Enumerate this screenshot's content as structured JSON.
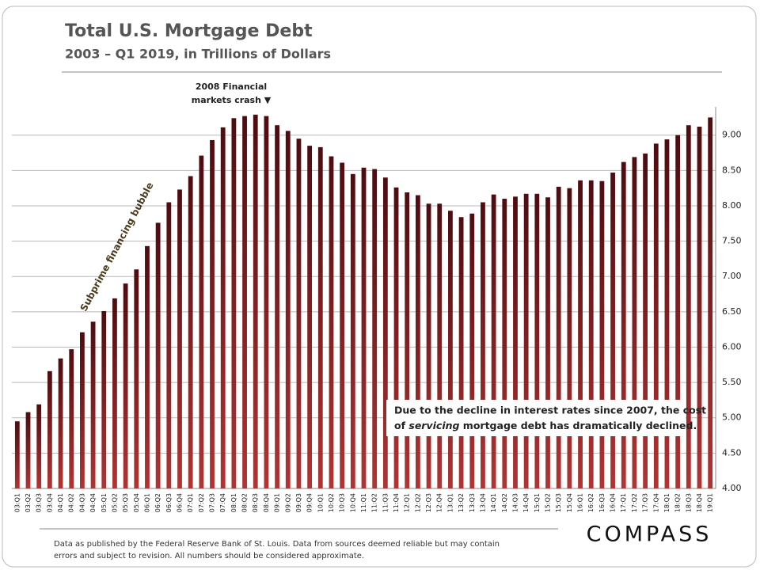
{
  "chart_data": {
    "type": "bar",
    "title": "Total U.S. Mortgage Debt",
    "subtitle": "2003 – Q1 2019, in Trillions  of Dollars",
    "annotations": {
      "crash_line1": "2008  Financial",
      "crash_line2": "markets crash ▼",
      "bubble": "Subprime financing bubble",
      "note_line1": "Due to the decline in interest rates since 2007, the cost",
      "note_line2_start": "of ",
      "note_line2_em": "servicing",
      "note_line2_end": " mortgage debt has dramatically declined."
    },
    "footer_line1": "Data as published by the Federal Reserve Bank of St. Louis. Data from sources deemed reliable but may contain",
    "footer_line2": "errors and subject to revision. All numbers should be considered approximate.",
    "brand": "COMPASS",
    "categories": [
      "03:Q1",
      "03:Q2",
      "03:Q3",
      "03:Q4",
      "04:Q1",
      "04:Q2",
      "04:Q3",
      "04:Q4",
      "05:Q1",
      "05:Q2",
      "05:Q3",
      "05:Q4",
      "06:Q1",
      "06:Q2",
      "06:Q3",
      "06:Q4",
      "07:Q1",
      "07:Q2",
      "07:Q3",
      "07:Q4",
      "08:Q1",
      "08:Q2",
      "08:Q3",
      "08:Q4",
      "09:Q1",
      "09:Q2",
      "09:Q3",
      "09:Q4",
      "10:Q1",
      "10:Q2",
      "10:Q3",
      "10:Q4",
      "11:Q1",
      "11:Q2",
      "11:Q3",
      "11:Q4",
      "12:Q1",
      "12:Q2",
      "12:Q3",
      "12:Q4",
      "13:Q1",
      "13:Q2",
      "13:Q3",
      "13:Q4",
      "14:Q1",
      "14:Q2",
      "14:Q3",
      "14:Q4",
      "15:Q1",
      "15:Q2",
      "15:Q3",
      "15:Q4",
      "16:Q1",
      "16:Q2",
      "16:Q3",
      "16:Q4",
      "17:Q1",
      "17:Q2",
      "17:Q3",
      "17:Q4",
      "18:Q1",
      "18:Q2",
      "18:Q3",
      "18:Q4",
      "19:Q1"
    ],
    "values": [
      4.95,
      5.08,
      5.19,
      5.66,
      5.84,
      5.97,
      6.21,
      6.36,
      6.51,
      6.69,
      6.9,
      7.1,
      7.43,
      7.76,
      8.05,
      8.23,
      8.42,
      8.71,
      8.93,
      9.11,
      9.24,
      9.27,
      9.29,
      9.27,
      9.14,
      9.06,
      8.95,
      8.85,
      8.83,
      8.7,
      8.61,
      8.45,
      8.54,
      8.52,
      8.4,
      8.26,
      8.19,
      8.15,
      8.03,
      8.03,
      7.93,
      7.84,
      7.89,
      8.05,
      8.16,
      8.1,
      8.13,
      8.17,
      8.17,
      8.12,
      8.27,
      8.25,
      8.36,
      8.36,
      8.35,
      8.47,
      8.62,
      8.69,
      8.74,
      8.88,
      8.94,
      9.0,
      9.14,
      9.12,
      9.25
    ],
    "color": "#7a1a1c",
    "ylim": [
      4,
      9.4
    ],
    "yticks": [
      {
        "value": 4,
        "label": "4.00"
      },
      {
        "value": 4.5,
        "label": "4.50"
      },
      {
        "value": 5,
        "label": "5.00"
      },
      {
        "value": 5.5,
        "label": "5.50"
      },
      {
        "value": 6,
        "label": "6.00"
      },
      {
        "value": 6.5,
        "label": "6.50"
      },
      {
        "value": 7,
        "label": "7.00"
      },
      {
        "value": 7.5,
        "label": "7.50"
      },
      {
        "value": 8,
        "label": "8.00"
      },
      {
        "value": 8.5,
        "label": "8.50"
      },
      {
        "value": 9,
        "label": "9.00"
      }
    ],
    "grid": true
  }
}
